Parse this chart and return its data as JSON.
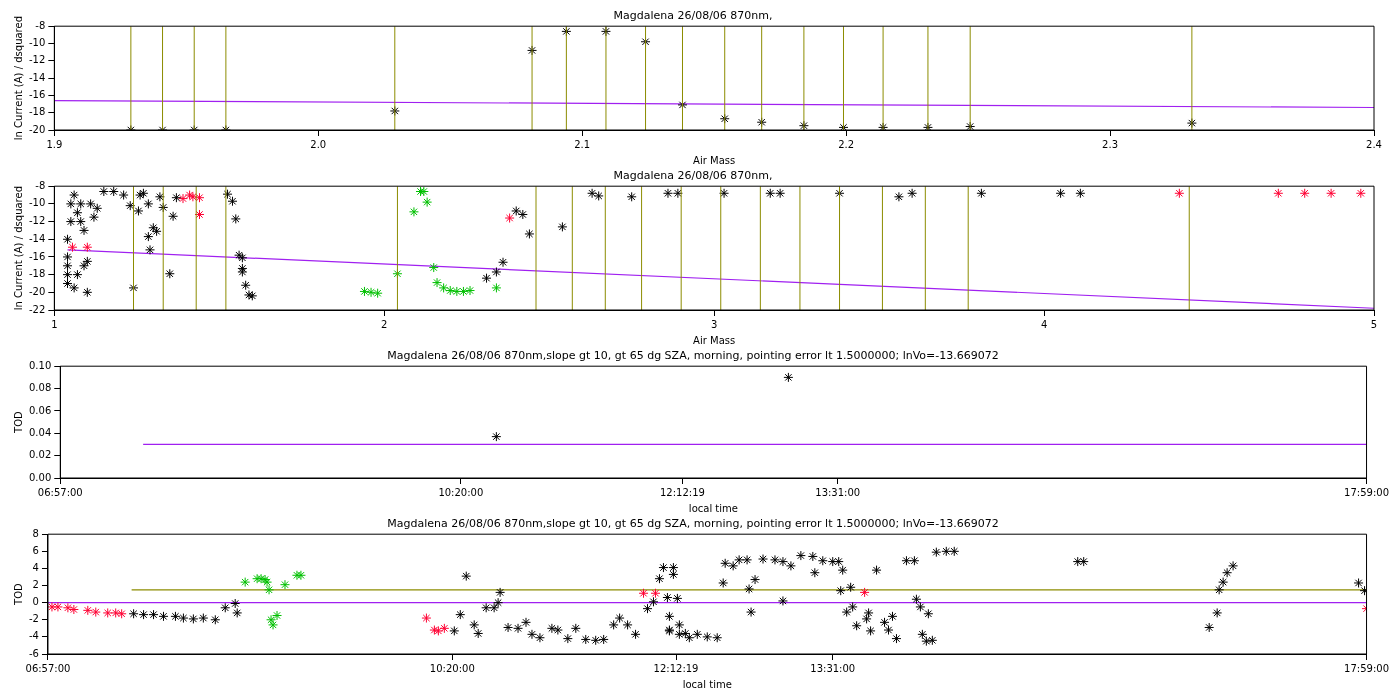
{
  "chart_data": [
    {
      "type": "scatter",
      "title": "Magdalena 26/08/06 870nm,",
      "xlabel": "Air Mass",
      "ylabel": "ln Current (A) / dsquared",
      "xlim": [
        1.9,
        2.4
      ],
      "xticks": [
        {
          "value": 1.9,
          "label": "1.9"
        },
        {
          "value": 2.0,
          "label": "2.0"
        },
        {
          "value": 2.1,
          "label": "2.1"
        },
        {
          "value": 2.2,
          "label": "2.2"
        },
        {
          "value": 2.3,
          "label": "2.3"
        },
        {
          "value": 2.4,
          "label": "2.4"
        }
      ],
      "ylim": [
        -20,
        -8
      ],
      "yticks": [
        -20,
        -18,
        -16,
        -14,
        -12,
        -10,
        -8
      ],
      "series": [
        {
          "marker": "cross",
          "color": "#000000",
          "x": [
            1.929,
            1.941,
            1.953,
            1.965,
            2.029,
            2.081,
            2.094,
            2.109,
            2.124,
            2.138,
            2.154,
            2.168,
            2.184,
            2.199,
            2.214,
            2.231,
            2.247,
            2.331
          ],
          "values": [
            -20,
            -20,
            -20,
            -20,
            -17.8,
            -10.8,
            -8.6,
            -8.6,
            -9.8,
            -17.1,
            -18.7,
            -19.1,
            -19.5,
            -19.7,
            -19.7,
            -19.7,
            -19.6,
            -19.2
          ]
        },
        {
          "type": "line",
          "marker": "none",
          "color": "#a020f0",
          "x": [
            1.9,
            2.4
          ],
          "values": [
            -16.6,
            -17.4
          ]
        }
      ],
      "ref_lines": [
        {
          "axis": "x",
          "value": 1.929,
          "color": "#8c8c00"
        },
        {
          "axis": "x",
          "value": 1.941,
          "color": "#8c8c00"
        },
        {
          "axis": "x",
          "value": 1.953,
          "color": "#8c8c00"
        },
        {
          "axis": "x",
          "value": 1.965,
          "color": "#8c8c00"
        },
        {
          "axis": "x",
          "value": 2.029,
          "color": "#8c8c00"
        },
        {
          "axis": "x",
          "value": 2.081,
          "color": "#8c8c00"
        },
        {
          "axis": "x",
          "value": 2.094,
          "color": "#8c8c00"
        },
        {
          "axis": "x",
          "value": 2.109,
          "color": "#8c8c00"
        },
        {
          "axis": "x",
          "value": 2.124,
          "color": "#8c8c00"
        },
        {
          "axis": "x",
          "value": 2.138,
          "color": "#8c8c00"
        },
        {
          "axis": "x",
          "value": 2.154,
          "color": "#8c8c00"
        },
        {
          "axis": "x",
          "value": 2.168,
          "color": "#8c8c00"
        },
        {
          "axis": "x",
          "value": 2.184,
          "color": "#8c8c00"
        },
        {
          "axis": "x",
          "value": 2.199,
          "color": "#8c8c00"
        },
        {
          "axis": "x",
          "value": 2.214,
          "color": "#8c8c00"
        },
        {
          "axis": "x",
          "value": 2.231,
          "color": "#8c8c00"
        },
        {
          "axis": "x",
          "value": 2.247,
          "color": "#8c8c00"
        },
        {
          "axis": "x",
          "value": 2.331,
          "color": "#8c8c00"
        }
      ]
    },
    {
      "type": "scatter",
      "title": "Magdalena 26/08/06 870nm,",
      "xlabel": "Air Mass",
      "ylabel": "ln Current (A) / dsquared",
      "xlim": [
        1,
        5
      ],
      "xticks": [
        1,
        2,
        3,
        4,
        5
      ],
      "ylim": [
        -22,
        -8
      ],
      "yticks": [
        -22,
        -20,
        -18,
        -16,
        -14,
        -12,
        -10,
        -8
      ],
      "series": [
        {
          "marker": "cross",
          "color": "#000000",
          "x": [
            1.04,
            1.04,
            1.04,
            1.04,
            1.04,
            1.05,
            1.05,
            1.06,
            1.06,
            1.07,
            1.07,
            1.08,
            1.08,
            1.09,
            1.09,
            1.1,
            1.1,
            1.11,
            1.12,
            1.13,
            1.15,
            1.18,
            1.21,
            1.23,
            1.24,
            1.255,
            1.26,
            1.27,
            1.285,
            1.285,
            1.29,
            1.3,
            1.31,
            1.32,
            1.33,
            1.35,
            1.36,
            1.37,
            1.525,
            1.54,
            1.55,
            1.56,
            1.57,
            1.57,
            1.57,
            1.58,
            1.59,
            1.6,
            2.31,
            2.34,
            2.36,
            2.4,
            2.42,
            2.44,
            2.54,
            2.63,
            2.65,
            2.75,
            2.86,
            2.89,
            3.03,
            3.17,
            3.2,
            3.38,
            3.56,
            3.6,
            3.81,
            4.05,
            4.11
          ],
          "values": [
            -19,
            -18,
            -17,
            -16,
            -14,
            -12,
            -10,
            -9,
            -19.5,
            -18,
            -11,
            -10,
            -12,
            -13,
            -17,
            -16.5,
            -20,
            -10,
            -11.5,
            -10.5,
            -8.6,
            -8.6,
            -9,
            -10.2,
            -19.5,
            -10.8,
            -9,
            -8.8,
            -13.7,
            -10,
            -15.2,
            -12.7,
            -13.1,
            -9.2,
            -10.4,
            -17.9,
            -11.4,
            -9.3,
            -8.9,
            -9.7,
            -11.7,
            -15.8,
            -16.1,
            -17.3,
            -17.7,
            -19.2,
            -20.3,
            -20.4,
            -18.4,
            -17.7,
            -16.6,
            -10.8,
            -11.2,
            -13.4,
            -12.6,
            -8.8,
            -9.1,
            -9.2,
            -8.8,
            -8.8,
            -8.8,
            -8.8,
            -8.8,
            -8.8,
            -9.2,
            -8.8,
            -8.8,
            -8.8,
            -8.8
          ]
        },
        {
          "marker": "cross",
          "color": "#ff0033",
          "x": [
            1.055,
            1.1,
            1.39,
            1.41,
            1.42,
            1.44,
            1.44,
            2.38,
            4.41,
            4.71,
            4.79,
            4.87,
            4.96
          ],
          "values": [
            -14.9,
            -14.9,
            -9.4,
            -9,
            -9.2,
            -9.3,
            -11.2,
            -11.6,
            -8.8,
            -8.8,
            -8.8,
            -8.8,
            -8.8
          ]
        },
        {
          "marker": "cross",
          "color": "#00c000",
          "x": [
            1.94,
            1.96,
            1.98,
            2.04,
            2.09,
            2.11,
            2.12,
            2.13,
            2.15,
            2.16,
            2.18,
            2.2,
            2.22,
            2.24,
            2.26,
            2.34
          ],
          "values": [
            -19.9,
            -20,
            -20.1,
            -17.9,
            -10.9,
            -8.6,
            -8.6,
            -9.8,
            -17.2,
            -18.9,
            -19.5,
            -19.8,
            -19.9,
            -19.9,
            -19.8,
            -19.5
          ]
        },
        {
          "type": "line",
          "marker": "none",
          "color": "#a020f0",
          "x": [
            1.04,
            5
          ],
          "values": [
            -15.2,
            -21.8
          ]
        }
      ],
      "ref_lines": [
        {
          "axis": "x",
          "value": 1.24,
          "color": "#8c8c00"
        },
        {
          "axis": "x",
          "value": 1.33,
          "color": "#8c8c00"
        },
        {
          "axis": "x",
          "value": 1.43,
          "color": "#8c8c00"
        },
        {
          "axis": "x",
          "value": 1.52,
          "color": "#8c8c00"
        },
        {
          "axis": "x",
          "value": 2.04,
          "color": "#8c8c00"
        },
        {
          "axis": "x",
          "value": 2.46,
          "color": "#8c8c00"
        },
        {
          "axis": "x",
          "value": 2.57,
          "color": "#8c8c00"
        },
        {
          "axis": "x",
          "value": 2.67,
          "color": "#8c8c00"
        },
        {
          "axis": "x",
          "value": 2.78,
          "color": "#8c8c00"
        },
        {
          "axis": "x",
          "value": 2.9,
          "color": "#8c8c00"
        },
        {
          "axis": "x",
          "value": 3.02,
          "color": "#8c8c00"
        },
        {
          "axis": "x",
          "value": 3.14,
          "color": "#8c8c00"
        },
        {
          "axis": "x",
          "value": 3.26,
          "color": "#8c8c00"
        },
        {
          "axis": "x",
          "value": 3.38,
          "color": "#8c8c00"
        },
        {
          "axis": "x",
          "value": 3.51,
          "color": "#8c8c00"
        },
        {
          "axis": "x",
          "value": 3.64,
          "color": "#8c8c00"
        },
        {
          "axis": "x",
          "value": 3.77,
          "color": "#8c8c00"
        },
        {
          "axis": "x",
          "value": 4.44,
          "color": "#8c8c00"
        }
      ]
    },
    {
      "type": "scatter",
      "title": "Magdalena 26/08/06 870nm,slope gt 10, gt 65 dg SZA, morning, pointing error lt 1.5000000; lnVo=-13.669072",
      "xlabel": "local time",
      "ylabel": "TOD",
      "xlim": [
        "--08-26T06:57:00",
        "--08-26T17:59:00"
      ],
      "xticks": [
        {
          "value": "--08-26T06:57:00",
          "label": "06:57:00"
        },
        {
          "value": "--08-26T10:20:00",
          "label": "10:20:00"
        },
        {
          "value": "--08-26T12:12:19",
          "label": "12:12:19"
        },
        {
          "value": "--08-26T13:31:00",
          "label": "13:31:00"
        },
        {
          "value": "--08-26T17:59:00",
          "label": "17:59:00"
        }
      ],
      "ylim": [
        0,
        0.1
      ],
      "yticks": [
        {
          "value": 0,
          "label": "0.00"
        },
        {
          "value": 0.02,
          "label": "0.02"
        },
        {
          "value": 0.04,
          "label": "0.04"
        },
        {
          "value": 0.06,
          "label": "0.06"
        },
        {
          "value": 0.08,
          "label": "0.08"
        },
        {
          "value": 0.1,
          "label": "0.10"
        }
      ],
      "series": [
        {
          "marker": "cross",
          "color": "#000000",
          "x": [
            "--08-26T10:38",
            "--08-26T13:06"
          ],
          "values": [
            0.037,
            0.09
          ]
        },
        {
          "type": "line",
          "marker": "none",
          "color": "#a020f0",
          "x": [
            "--08-26T07:39",
            "--08-26T17:59"
          ],
          "values": [
            0.03,
            0.03
          ]
        }
      ]
    },
    {
      "type": "scatter",
      "title": "Magdalena 26/08/06 870nm,slope gt 10, gt 65 dg SZA, morning, pointing error lt 1.5000000; lnVo=-13.669072",
      "xlabel": "local time",
      "ylabel": "TOD",
      "xlim": [
        "--08-26T06:57:00",
        "--08-26T17:59:00"
      ],
      "xticks": [
        {
          "value": "--08-26T06:57:00",
          "label": "06:57:00"
        },
        {
          "value": "--08-26T10:20:00",
          "label": "10:20:00"
        },
        {
          "value": "--08-26T12:12:19",
          "label": "12:12:19"
        },
        {
          "value": "--08-26T13:31:00",
          "label": "13:31:00"
        },
        {
          "value": "--08-26T17:59:00",
          "label": "17:59:00"
        }
      ],
      "ylim": [
        -6,
        8
      ],
      "yticks": [
        -6,
        -4,
        -2,
        0,
        2,
        4,
        6,
        8
      ],
      "series": [
        {
          "type": "line",
          "marker": "none",
          "color": "#8c8c00",
          "x": [
            "--08-26T07:39",
            "--08-26T17:59"
          ],
          "values": [
            1.5,
            1.5
          ]
        },
        {
          "type": "line",
          "marker": "none",
          "color": "#a020f0",
          "x": [
            "--08-26T06:57",
            "--08-26T17:59"
          ],
          "values": [
            0,
            0
          ]
        },
        {
          "marker": "cross",
          "color": "#ff0033",
          "x": [
            "--08-26T06:59",
            "--08-26T07:02",
            "--08-26T07:07",
            "--08-26T07:10",
            "--08-26T07:17",
            "--08-26T07:21",
            "--08-26T07:27",
            "--08-26T07:31",
            "--08-26T07:34",
            "--08-26T10:07",
            "--08-26T10:11",
            "--08-26T10:13",
            "--08-26T10:16",
            "--08-26T11:56",
            "--08-26T12:02",
            "--08-26T13:47",
            "--08-26T17:59"
          ],
          "values": [
            -0.5,
            -0.5,
            -0.6,
            -0.8,
            -0.9,
            -1.1,
            -1.2,
            -1.2,
            -1.3,
            -1.8,
            -3.2,
            -3.3,
            -3.0,
            1.1,
            1.1,
            1.2,
            -0.7
          ]
        },
        {
          "marker": "cross",
          "color": "#00c000",
          "x": [
            "--08-26T08:36",
            "--08-26T08:42",
            "--08-26T08:44",
            "--08-26T08:46",
            "--08-26T08:47",
            "--08-26T08:48",
            "--08-26T08:49",
            "--08-26T08:50",
            "--08-26T08:52",
            "--08-26T08:56",
            "--08-26T09:02",
            "--08-26T09:04"
          ],
          "values": [
            2.4,
            2.8,
            2.8,
            2.7,
            2.4,
            1.5,
            -2,
            -2.6,
            -1.5,
            2.1,
            3.2,
            3.2
          ]
        },
        {
          "marker": "cross",
          "color": "#000000",
          "x": [
            "--08-26T07:40",
            "--08-26T07:45",
            "--08-26T07:50",
            "--08-26T07:55",
            "--08-26T08:01",
            "--08-26T08:05",
            "--08-26T08:10",
            "--08-26T08:15",
            "--08-26T08:21",
            "--08-26T08:26",
            "--08-26T08:31",
            "--08-26T08:32",
            "--08-26T10:21",
            "--08-26T10:24",
            "--08-26T10:27",
            "--08-26T10:31",
            "--08-26T10:33",
            "--08-26T10:37",
            "--08-26T10:41",
            "--08-26T10:43",
            "--08-26T10:44",
            "--08-26T10:48",
            "--08-26T10:53",
            "--08-26T10:57",
            "--08-26T11:00",
            "--08-26T11:04",
            "--08-26T11:10",
            "--08-26T11:13",
            "--08-26T11:18",
            "--08-26T11:22",
            "--08-26T11:27",
            "--08-26T11:32",
            "--08-26T11:36",
            "--08-26T11:41",
            "--08-26T11:44",
            "--08-26T11:48",
            "--08-26T11:52",
            "--08-26T11:58",
            "--08-26T12:01",
            "--08-26T12:04",
            "--08-26T12:06",
            "--08-26T12:08",
            "--08-26T12:09",
            "--08-26T12:09",
            "--08-26T12:11",
            "--08-26T12:11",
            "--08-26T12:13",
            "--08-26T12:14",
            "--08-26T12:17",
            "--08-26T12:09",
            "--08-26T12:14",
            "--08-26T12:19",
            "--08-26T12:23",
            "--08-26T12:28",
            "--08-26T12:33",
            "--08-26T12:36",
            "--08-26T12:37",
            "--08-26T12:41",
            "--08-26T12:44",
            "--08-26T12:48",
            "--08-26T12:49",
            "--08-26T12:50",
            "--08-26T12:52",
            "--08-26T12:56",
            "--08-26T13:02",
            "--08-26T13:06",
            "--08-26T13:06",
            "--08-26T13:10",
            "--08-26T13:15",
            "--08-26T13:21",
            "--08-26T13:22",
            "--08-26T13:26",
            "--08-26T13:31",
            "--08-26T13:34",
            "--08-26T13:36",
            "--08-26T13:35",
            "--08-26T13:40",
            "--08-26T13:38",
            "--08-26T13:41",
            "--08-26T13:43",
            "--08-26T13:49",
            "--08-26T13:48",
            "--08-26T13:50",
            "--08-26T13:53",
            "--08-26T13:57",
            "--08-26T14:01",
            "--08-26T13:59",
            "--08-26T14:03",
            "--08-26T14:08",
            "--08-26T14:12",
            "--08-26T14:13",
            "--08-26T14:15",
            "--08-26T14:19",
            "--08-26T14:16",
            "--08-26T14:18",
            "--08-26T14:21",
            "--08-26T14:23",
            "--08-26T14:28",
            "--08-26T14:32",
            "--08-26T15:34",
            "--08-26T15:37",
            "--08-26T16:40",
            "--08-26T16:44",
            "--08-26T16:45",
            "--08-26T16:47",
            "--08-26T16:49",
            "--08-26T16:52",
            "--08-26T17:55",
            "--08-26T17:58"
          ],
          "values": [
            -1.3,
            -1.4,
            -1.4,
            -1.6,
            -1.6,
            -1.8,
            -1.9,
            -1.8,
            -2,
            -0.6,
            -0.1,
            -1.2,
            -3.3,
            -1.4,
            3.1,
            -2.6,
            -3.6,
            -0.6,
            -0.6,
            0,
            1.2,
            -2.9,
            -3,
            -2.3,
            -3.7,
            -4.1,
            -3,
            -3.2,
            -4.2,
            -3,
            -4.3,
            -4.4,
            -4.3,
            -2.6,
            -1.8,
            -2.6,
            -3.7,
            -0.7,
            0.1,
            2.8,
            4.1,
            0.6,
            -1.6,
            -3.2,
            4.1,
            3.3,
            0.5,
            -2.6,
            -3.6,
            -3.3,
            -3.7,
            -4.1,
            -3.7,
            -4,
            -4.1,
            2.3,
            4.6,
            4.3,
            5,
            5,
            1.6,
            -1.1,
            2.7,
            5.1,
            5,
            4.8,
            0.2,
            4.3,
            5.5,
            5.4,
            3.5,
            4.9,
            4.8,
            4.8,
            3.8,
            1.4,
            1.8,
            -1.1,
            -0.5,
            -2.7,
            -1.2,
            -1.9,
            -3.3,
            3.8,
            -2.3,
            -1.6,
            -3.2,
            -4.2,
            4.9,
            4.9,
            0.4,
            -0.5,
            -1.3,
            -3.7,
            -4.5,
            -4.4,
            5.9,
            6,
            6,
            4.8,
            4.8,
            -2.9,
            -1.2,
            1.5,
            2.4,
            3.5,
            4.3,
            2.3,
            1.4
          ]
        }
      ]
    }
  ]
}
